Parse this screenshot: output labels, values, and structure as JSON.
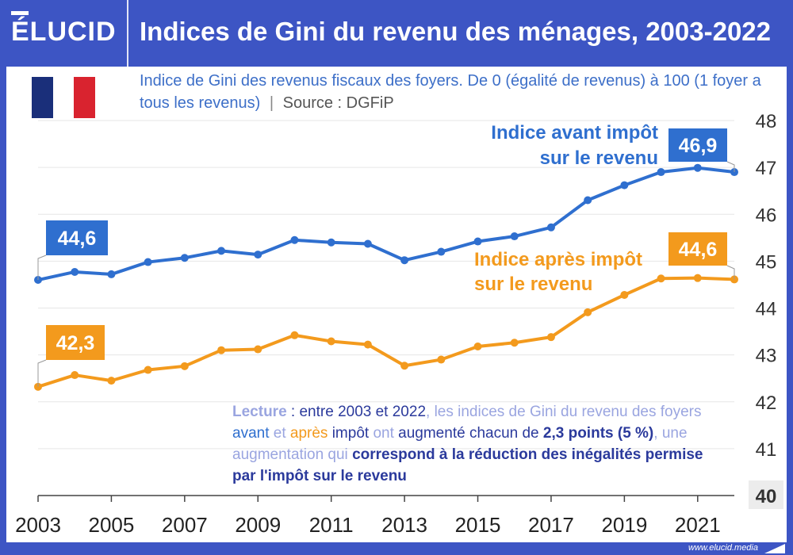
{
  "header": {
    "logo": "ÉLUCID",
    "title": "Indices de Gini du revenu des ménages, 2003-2022"
  },
  "subtitle": {
    "text": "Indice de Gini des revenus fiscaux des foyers. De 0 (égalité de revenus) à 100 (1 foyer a tous les revenus)",
    "separator": "|",
    "source": "Source : DGFiP"
  },
  "reading": {
    "p1": "Lecture",
    "p2": " : ",
    "p3": "entre 2003 et 2022",
    "p4": ", les indices de Gini du revenu des foyers ",
    "p5": "avant",
    "p6": " et ",
    "p7": "après",
    "p8": " impôt",
    "p9": " ont ",
    "p10": "augmenté chacun de ",
    "p11": "2,3 points (5 %)",
    "p12": ", une augmentation qui ",
    "p13": "correspond à la réduction des inégalités permise par l'impôt sur le revenu"
  },
  "footer": {
    "url": "www.elucid.media"
  },
  "colors": {
    "blue": "#2f6fcf",
    "orange": "#f39a1d",
    "frame": "#3d55c4",
    "flag_blue": "#1a2f7a",
    "flag_white": "#ffffff",
    "flag_red": "#d9232f"
  },
  "chart_data": {
    "type": "line",
    "title": "Indices de Gini du revenu des ménages, 2003-2022",
    "x": [
      2003,
      2004,
      2005,
      2006,
      2007,
      2008,
      2009,
      2010,
      2011,
      2012,
      2013,
      2014,
      2015,
      2016,
      2017,
      2018,
      2019,
      2020,
      2021,
      2022
    ],
    "x_tick_labels": [
      "2003",
      "2005",
      "2007",
      "2009",
      "2011",
      "2013",
      "2015",
      "2017",
      "2019",
      "2021"
    ],
    "y_tick_labels": [
      "40",
      "41",
      "42",
      "43",
      "44",
      "45",
      "46",
      "47",
      "48"
    ],
    "ylim": [
      40,
      48
    ],
    "grid": true,
    "series": [
      {
        "name": "Indice avant impôt sur le revenu",
        "label_line1": "Indice avant impôt",
        "label_line2": "sur le revenu",
        "color": "#2f6fcf",
        "values": [
          44.6,
          44.77,
          44.72,
          44.98,
          45.07,
          45.22,
          45.14,
          45.45,
          45.4,
          45.37,
          45.02,
          45.2,
          45.42,
          45.53,
          45.72,
          46.3,
          46.62,
          46.9,
          46.99,
          46.9
        ],
        "start_label": "44,6",
        "end_label": "46,9"
      },
      {
        "name": "Indice après impôt sur le revenu",
        "label_line1": "Indice après impôt",
        "label_line2": "sur le revenu",
        "color": "#f39a1d",
        "values": [
          42.32,
          42.57,
          42.45,
          42.68,
          42.76,
          43.1,
          43.12,
          43.42,
          43.29,
          43.22,
          42.77,
          42.9,
          43.18,
          43.26,
          43.38,
          43.91,
          44.28,
          44.63,
          44.64,
          44.61
        ],
        "start_label": "42,3",
        "end_label": "44,6"
      }
    ]
  }
}
